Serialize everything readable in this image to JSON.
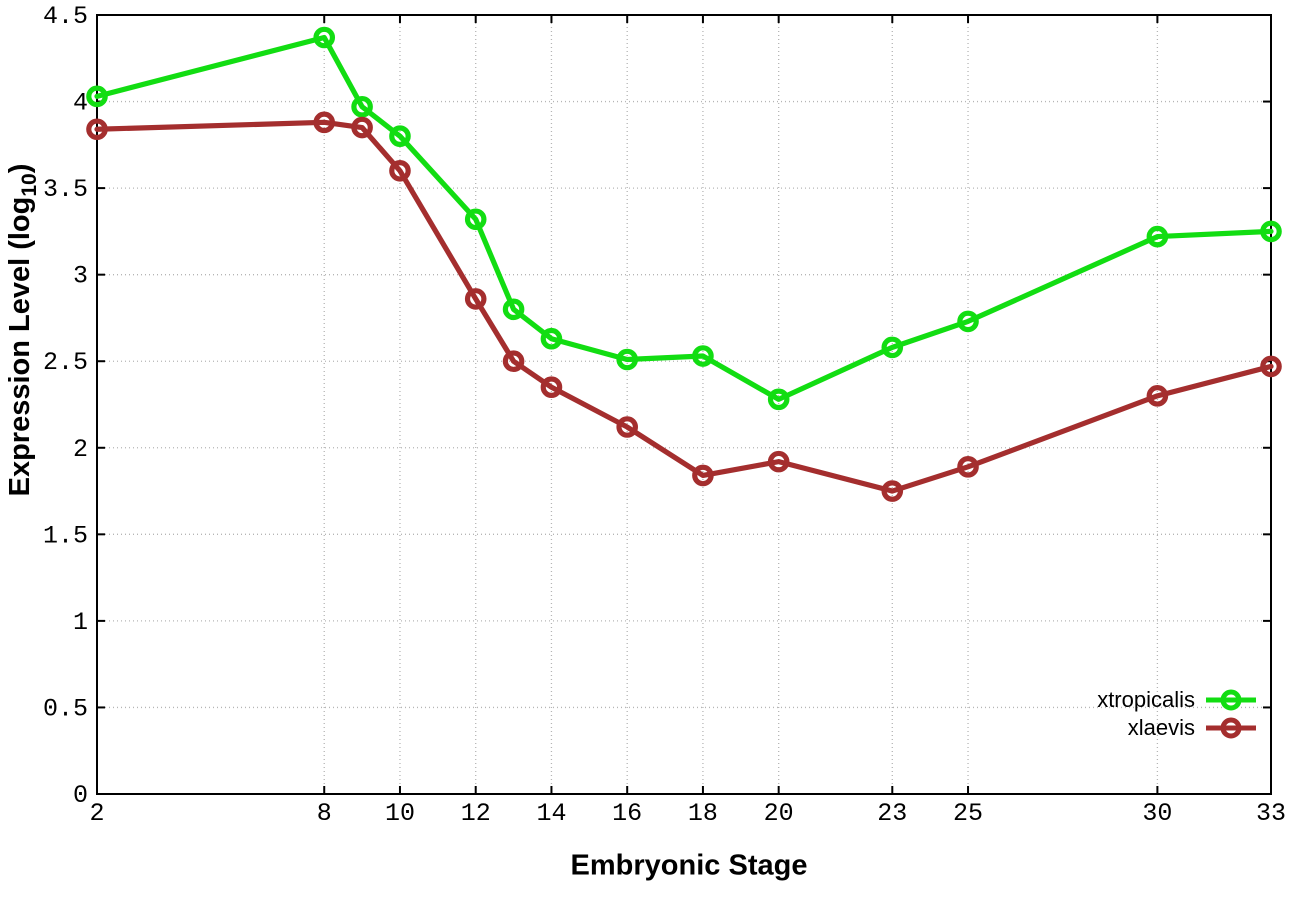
{
  "chart_data": {
    "type": "line",
    "title": "",
    "xlabel": "Embryonic Stage",
    "ylabel": {
      "base": "Expression Level (log",
      "sub": "10",
      "close": ")"
    },
    "x": [
      2,
      8,
      9,
      10,
      12,
      13,
      14,
      16,
      18,
      20,
      23,
      25,
      30,
      33
    ],
    "series": [
      {
        "name": "xtropicalis",
        "color": "#12dd12",
        "values": [
          4.03,
          4.37,
          3.97,
          3.8,
          3.32,
          2.8,
          2.63,
          2.51,
          2.53,
          2.28,
          2.58,
          2.73,
          3.22,
          3.25
        ]
      },
      {
        "name": "xlaevis",
        "color": "#a42e2e",
        "values": [
          3.84,
          3.88,
          3.85,
          3.6,
          2.86,
          2.5,
          2.35,
          2.12,
          1.84,
          1.92,
          1.75,
          1.89,
          2.3,
          2.47
        ]
      }
    ],
    "xlim": [
      2,
      33
    ],
    "ylim": [
      0,
      4.5
    ],
    "xticks": {
      "values": [
        2,
        8,
        10,
        12,
        14,
        16,
        18,
        20,
        23,
        25,
        30,
        33
      ],
      "labels": [
        "2",
        "8",
        "10",
        "12",
        "14",
        "16",
        "18",
        "20",
        "23",
        "25",
        "30",
        "33"
      ]
    },
    "yticks": {
      "values": [
        0,
        0.5,
        1,
        1.5,
        2,
        2.5,
        3,
        3.5,
        4,
        4.5
      ],
      "labels": [
        "0",
        "0.5",
        "1",
        "1.5",
        "2",
        "2.5",
        "3",
        "3.5",
        "4",
        "4.5"
      ]
    },
    "grid": true,
    "legend_position": "inside-bottom-right"
  },
  "style": {
    "background": "#ffffff",
    "grid_color": "#b5b5b5",
    "axis_color": "#000000",
    "text_color": "#000000"
  }
}
